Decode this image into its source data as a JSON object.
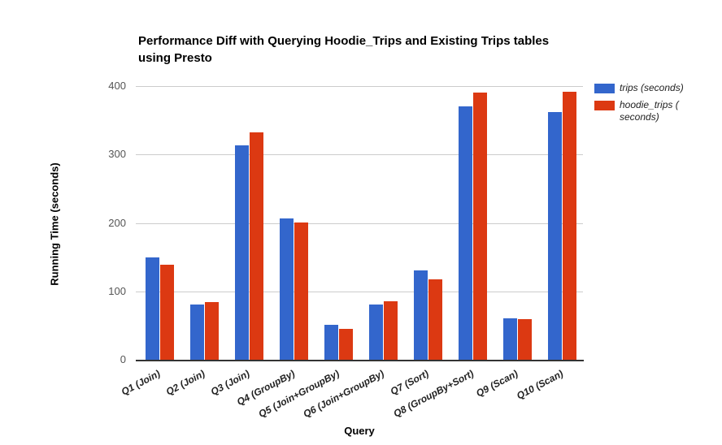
{
  "chart_data": {
    "type": "bar",
    "title": "Performance Diff with Querying Hoodie_Trips and Existing Trips tables\nusing Presto",
    "xlabel": "Query",
    "ylabel": "Running Time (seconds)",
    "ylim": [
      0,
      400
    ],
    "yticks": [
      0,
      100,
      200,
      300,
      400
    ],
    "grid": true,
    "legend_position": "top-right",
    "categories": [
      "Q1 (Join)",
      "Q2 (Join)",
      "Q3 (Join)",
      "Q4 (GroupBy)",
      "Q5 (Join+GroupBy)",
      "Q6 (Join+GroupBy)",
      "Q7 (Sort)",
      "Q8 (GroupBy+Sort)",
      "Q9 (Scan)",
      "Q10 (Scan)"
    ],
    "series": [
      {
        "name": "trips (seconds)",
        "color": "#3366cc",
        "values": [
          150,
          81,
          313,
          207,
          51,
          81,
          131,
          370,
          60,
          362
        ]
      },
      {
        "name": "hoodie_trips ( seconds)",
        "color": "#dc3912",
        "values": [
          139,
          84,
          332,
          201,
          45,
          85,
          117,
          390,
          59,
          392
        ]
      }
    ],
    "colors": {
      "gridline": "#cccccc",
      "axis_line": "#333333",
      "tick_label": "#555555",
      "category_label": "#222222",
      "title": "#000000"
    }
  }
}
